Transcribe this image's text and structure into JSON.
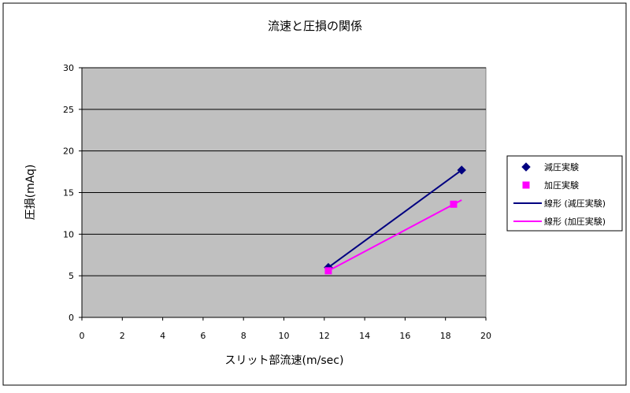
{
  "colors": {
    "plot_background": "#c0c0c0",
    "grid": "#000000",
    "series_1": "#000080",
    "series_2": "#ff00ff"
  },
  "chart_data": {
    "type": "scatter",
    "title": "流速と圧損の関係",
    "xlabel": "スリット部流速(m/sec)",
    "ylabel": "圧損(mAq)",
    "xlim": [
      0,
      20
    ],
    "ylim": [
      0,
      30
    ],
    "x_ticks": [
      0,
      2,
      4,
      6,
      8,
      10,
      12,
      14,
      16,
      18,
      20
    ],
    "y_ticks": [
      0,
      5,
      10,
      15,
      20,
      25,
      30
    ],
    "grid": true,
    "legend_position": "right",
    "series": [
      {
        "name": "減圧実験",
        "marker": "diamond",
        "color": "#000080",
        "points": [
          [
            12.2,
            6.0
          ],
          [
            18.8,
            17.7
          ]
        ]
      },
      {
        "name": "加圧実験",
        "marker": "square",
        "color": "#ff00ff",
        "points": [
          [
            12.2,
            5.6
          ],
          [
            18.4,
            13.6
          ]
        ]
      }
    ],
    "trendlines": [
      {
        "name": "線形 (減圧実験)",
        "color": "#000080",
        "from": [
          12.2,
          6.0
        ],
        "to": [
          18.8,
          17.7
        ]
      },
      {
        "name": "線形 (加圧実験)",
        "color": "#ff00ff",
        "from": [
          12.2,
          5.6
        ],
        "to": [
          18.8,
          14.1
        ]
      }
    ]
  }
}
